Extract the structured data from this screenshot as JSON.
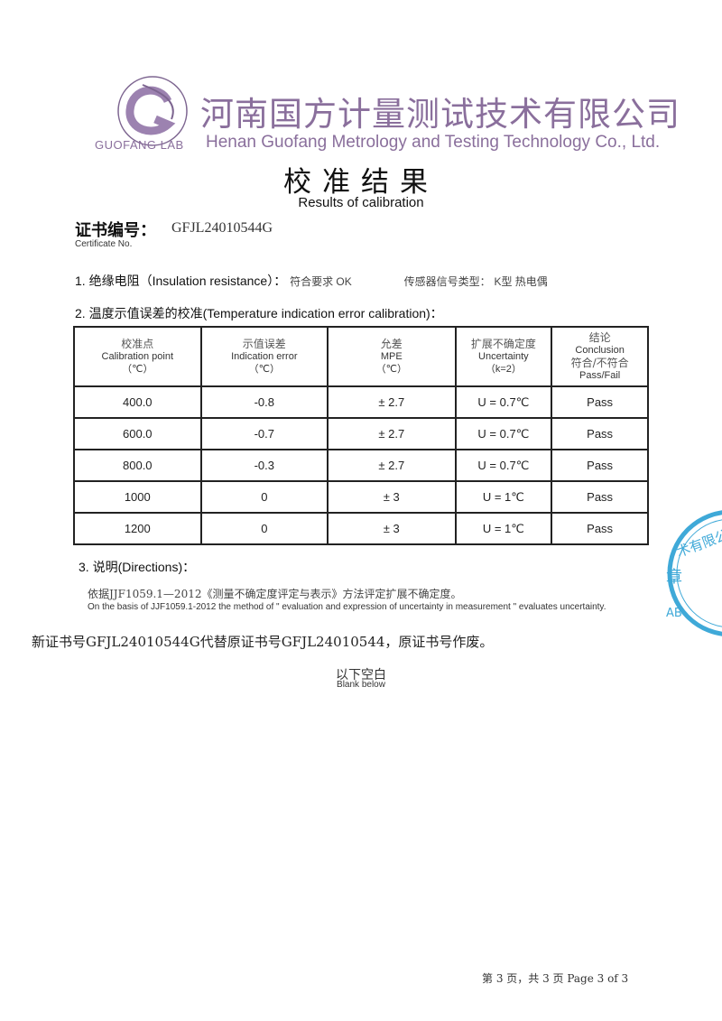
{
  "header": {
    "company_zh": "河南国方计量测试技术有限公司",
    "company_en": "Henan Guofang Metrology and Testing Technology Co., Ltd.",
    "logo_text": "GUOFANG LAB",
    "brand_color": "#8a6f9c"
  },
  "title": {
    "zh": "校准结果",
    "en": "Results of calibration"
  },
  "certificate": {
    "label_zh": "证书编号：",
    "number": "GFJL24010544G",
    "label_en": "Certificate No."
  },
  "section1": {
    "label": "1. 绝缘电阻（Insulation resistance）：",
    "value": "符合要求  OK",
    "sensor_label": "传感器信号类型：",
    "sensor_value": "K型  热电偶"
  },
  "section2": {
    "label": "2. 温度示值误差的校准(Temperature indication error calibration)："
  },
  "table": {
    "headers": [
      {
        "zh": "校准点",
        "en": "Calibration point",
        "unit": "（℃）"
      },
      {
        "zh": "示值误差",
        "en": "Indication error",
        "unit": "（℃）"
      },
      {
        "zh": "允差",
        "en": "MPE",
        "unit": "（℃）"
      },
      {
        "zh": "扩展不确定度",
        "en": "Uncertainty",
        "unit": "（k=2）"
      },
      {
        "zh": "结论",
        "en": "Conclusion",
        "unit": "符合/不符合",
        "en2": "Pass/Fail"
      }
    ],
    "rows": [
      [
        "400.0",
        "-0.8",
        "± 2.7",
        "U = 0.7℃",
        "Pass"
      ],
      [
        "600.0",
        "-0.7",
        "± 2.7",
        "U = 0.7℃",
        "Pass"
      ],
      [
        "800.0",
        "-0.3",
        "± 2.7",
        "U = 0.7℃",
        "Pass"
      ],
      [
        "1000",
        "0",
        "± 3",
        "U = 1℃",
        "Pass"
      ],
      [
        "1200",
        "0",
        "± 3",
        "U = 1℃",
        "Pass"
      ]
    ]
  },
  "section3": {
    "label": "3. 说明(Directions)：",
    "line_zh": "依据JJF1059.1—2012《测量不确定度评定与表示》方法评定扩展不确定度。",
    "line_en": "On the basis of JJF1059.1-2012 the method of \" evaluation and expression of uncertainty in measurement \" evaluates  uncertainty."
  },
  "note": "新证书号GFJL24010544G代替原证书号GFJL24010544，原证书号作废。",
  "blank": {
    "zh": "以下空白",
    "en": "Blank below"
  },
  "seal": {
    "text": "术有限公司 章 AB",
    "color": "#3fa9d8"
  },
  "footer": "第 3 页，共 3 页  Page 3 of 3"
}
